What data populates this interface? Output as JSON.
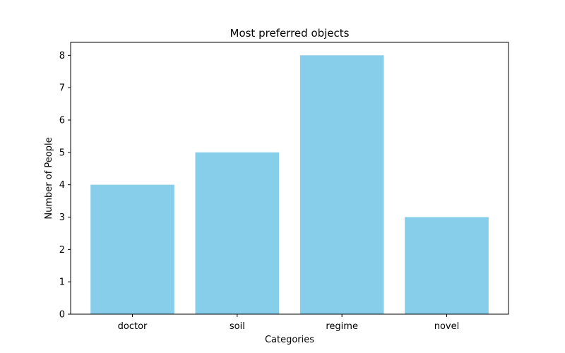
{
  "chart_data": {
    "type": "bar",
    "title": "Most preferred objects",
    "xlabel": "Categories",
    "ylabel": "Number of People",
    "categories": [
      "doctor",
      "soil",
      "regime",
      "novel"
    ],
    "values": [
      4,
      5,
      8,
      3
    ],
    "ylim": [
      0,
      8.4
    ],
    "yticks": [
      0,
      1,
      2,
      3,
      4,
      5,
      6,
      7,
      8
    ],
    "bar_color": "#87ceeb",
    "grid": false,
    "legend": "none"
  }
}
